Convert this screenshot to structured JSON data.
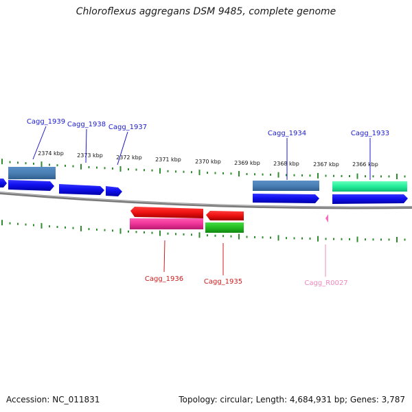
{
  "header": {
    "title": "Chloroflexus aggregans DSM 9485, complete genome"
  },
  "footer": {
    "accession": "Accession: NC_011831",
    "summary": "Topology: circular; Length: 4,684,931 bp; Genes: 3,787"
  },
  "scale": {
    "unit": "kbp",
    "ticks": [
      "2374 kbp",
      "2373 kbp",
      "2372 kbp",
      "2371 kbp",
      "2370 kbp",
      "2369 kbp",
      "2368 kbp",
      "2367 kbp",
      "2366 kbp"
    ]
  },
  "colors": {
    "backbone": "#8a8a8a",
    "tick": "#2e8b2e",
    "plus_label": "#1a1acc",
    "minus_label": "#cc1a1a",
    "rna_label": "#ee88bb",
    "cds_blue": "#1010ee",
    "gene_steel": "#4a7fb5",
    "gene_red": "#ee1111",
    "gene_magenta": "#ee3399",
    "gene_green": "#22bb22",
    "gene_teal": "#22ee99",
    "rna_pink": "#ff66bb"
  },
  "genes": {
    "top": [
      {
        "id": "cagg1939",
        "label": "Cagg_1939"
      },
      {
        "id": "cagg1938",
        "label": "Cagg_1938"
      },
      {
        "id": "cagg1937",
        "label": "Cagg_1937"
      },
      {
        "id": "cagg1934",
        "label": "Cagg_1934"
      },
      {
        "id": "cagg1933",
        "label": "Cagg_1933"
      }
    ],
    "bottom": [
      {
        "id": "cagg1936",
        "label": "Cagg_1936"
      },
      {
        "id": "cagg1935",
        "label": "Cagg_1935"
      },
      {
        "id": "caggr0027",
        "label": "Cagg_R0027"
      }
    ]
  }
}
